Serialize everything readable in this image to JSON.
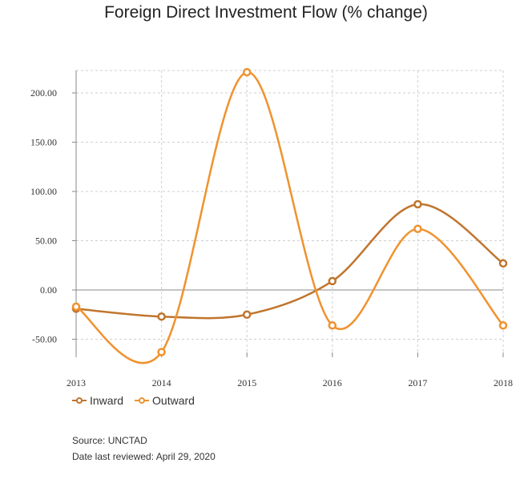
{
  "chart_data": {
    "type": "line",
    "title": "Foreign Direct Investment Flow (% change)",
    "xlabel": "",
    "ylabel": "",
    "categories": [
      "2013",
      "2014",
      "2015",
      "2016",
      "2017",
      "2018"
    ],
    "y_ticks": [
      "-50.00",
      "0.00",
      "50.00",
      "100.00",
      "150.00",
      "200.00"
    ],
    "ylim": [
      -65,
      225
    ],
    "grid": true,
    "legend_position": "bottom-left",
    "series": [
      {
        "name": "Inward",
        "color": "#C0752E",
        "values": [
          -19,
          -27,
          -25,
          9,
          87,
          27
        ]
      },
      {
        "name": "Outward",
        "color": "#F0922E",
        "values": [
          -17,
          -63,
          221,
          -36,
          62,
          -36
        ]
      }
    ]
  },
  "footer": {
    "source": "Source: UNCTAD",
    "reviewed": "Date last reviewed: April 29, 2020"
  }
}
